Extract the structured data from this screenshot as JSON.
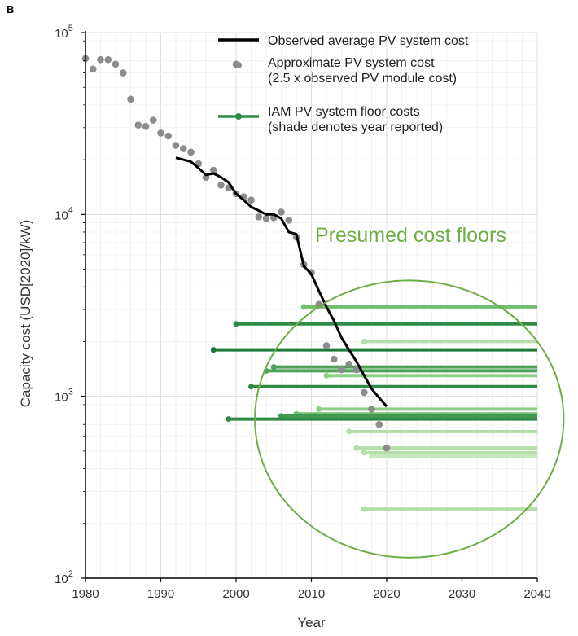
{
  "chart_data": {
    "type": "line",
    "panel_label": "B",
    "xlabel": "Year",
    "ylabel": "Capacity cost (USD[2020]/kW)",
    "xlim": [
      1980,
      2040
    ],
    "ylim": [
      100,
      100000
    ],
    "y_scale": "log",
    "x_ticks": [
      {
        "value": 1980,
        "label": "1980"
      },
      {
        "value": 1990,
        "label": "1990"
      },
      {
        "value": 2000,
        "label": "2000"
      },
      {
        "value": 2010,
        "label": "2010"
      },
      {
        "value": 2020,
        "label": "2020"
      },
      {
        "value": 2030,
        "label": "2030"
      },
      {
        "value": 2040,
        "label": "2040"
      }
    ],
    "y_ticks": [
      {
        "value": 100,
        "base": "10",
        "exp": "2"
      },
      {
        "value": 1000,
        "base": "10",
        "exp": "3"
      },
      {
        "value": 10000,
        "base": "10",
        "exp": "4"
      },
      {
        "value": 100000,
        "base": "10",
        "exp": "5"
      }
    ],
    "grid": true,
    "legend_position": "top-right",
    "series": [
      {
        "name": "Observed average PV system cost",
        "kind": "line",
        "color": "#000000",
        "points": [
          [
            1992,
            20500
          ],
          [
            1993,
            20000
          ],
          [
            1994,
            19500
          ],
          [
            1995,
            18000
          ],
          [
            1996,
            16500
          ],
          [
            1997,
            16800
          ],
          [
            1998,
            16000
          ],
          [
            1999,
            15000
          ],
          [
            2000,
            13000
          ],
          [
            2001,
            12000
          ],
          [
            2002,
            11000
          ],
          [
            2003,
            10500
          ],
          [
            2004,
            10000
          ],
          [
            2005,
            10000
          ],
          [
            2006,
            9500
          ],
          [
            2007,
            8000
          ],
          [
            2008,
            7800
          ],
          [
            2009,
            5200
          ],
          [
            2010,
            4700
          ],
          [
            2011,
            3800
          ],
          [
            2012,
            3100
          ],
          [
            2013,
            2600
          ],
          [
            2014,
            2100
          ],
          [
            2015,
            1800
          ],
          [
            2016,
            1550
          ],
          [
            2017,
            1300
          ],
          [
            2018,
            1100
          ],
          [
            2019,
            980
          ],
          [
            2020,
            880
          ]
        ]
      },
      {
        "name": "Approximate PV system cost\n(2.5 x observed PV module cost)",
        "name_lines": [
          "Approximate PV system cost",
          "(2.5 x observed PV module cost)"
        ],
        "kind": "scatter",
        "color": "#8c8c8c",
        "points": [
          [
            1980,
            72000
          ],
          [
            1981,
            63000
          ],
          [
            1982,
            71000
          ],
          [
            1983,
            71000
          ],
          [
            1984,
            67000
          ],
          [
            1985,
            60000
          ],
          [
            1986,
            43000
          ],
          [
            1987,
            31000
          ],
          [
            1988,
            30500
          ],
          [
            1989,
            33000
          ],
          [
            1990,
            28000
          ],
          [
            1991,
            27000
          ],
          [
            1992,
            24000
          ],
          [
            1993,
            23000
          ],
          [
            1994,
            22000
          ],
          [
            1995,
            19000
          ],
          [
            1996,
            16000
          ],
          [
            1997,
            17500
          ],
          [
            1998,
            14500
          ],
          [
            1999,
            14000
          ],
          [
            2000,
            67000
          ],
          [
            2000,
            13000
          ],
          [
            2001,
            12500
          ],
          [
            2002,
            12000
          ],
          [
            2003,
            9700
          ],
          [
            2004,
            9500
          ],
          [
            2005,
            9600
          ],
          [
            2006,
            10300
          ],
          [
            2007,
            9300
          ],
          [
            2008,
            7500
          ],
          [
            2009,
            5300
          ],
          [
            2010,
            4800
          ],
          [
            2011,
            3200
          ],
          [
            2012,
            1900
          ],
          [
            2013,
            1600
          ],
          [
            2014,
            1400
          ],
          [
            2015,
            1500
          ],
          [
            2016,
            1400
          ],
          [
            2017,
            1050
          ],
          [
            2018,
            850
          ],
          [
            2019,
            700
          ],
          [
            2020,
            520
          ]
        ]
      }
    ],
    "floor_series": {
      "name": "IAM PV system floor costs\n(shade denotes year reported)",
      "name_lines": [
        "IAM PV system floor costs",
        "(shade denotes year reported)"
      ],
      "legend_color": "#2e8b45",
      "x_end": 2040,
      "floors": [
        {
          "start": 2009,
          "value": 3100,
          "color": "#73bd73"
        },
        {
          "start": 2000,
          "value": 2500,
          "color": "#2e8b45"
        },
        {
          "start": 2017,
          "value": 2000,
          "color": "#b4dfa9"
        },
        {
          "start": 1997,
          "value": 1800,
          "color": "#1f7a38"
        },
        {
          "start": 2005,
          "value": 1450,
          "color": "#4fa25a"
        },
        {
          "start": 2004,
          "value": 1380,
          "color": "#4fa25a"
        },
        {
          "start": 2012,
          "value": 1300,
          "color": "#8fcf88"
        },
        {
          "start": 2002,
          "value": 1130,
          "color": "#2e8b45"
        },
        {
          "start": 2011,
          "value": 850,
          "color": "#8fcf88"
        },
        {
          "start": 2008,
          "value": 800,
          "color": "#73bd73"
        },
        {
          "start": 2006,
          "value": 780,
          "color": "#3f9a4e"
        },
        {
          "start": 1999,
          "value": 750,
          "color": "#2e8b45"
        },
        {
          "start": 2015,
          "value": 640,
          "color": "#b4dfa9"
        },
        {
          "start": 2016,
          "value": 520,
          "color": "#b4dfa9"
        },
        {
          "start": 2017,
          "value": 490,
          "color": "#b4dfa9"
        },
        {
          "start": 2018,
          "value": 470,
          "color": "#c6e6bb"
        },
        {
          "start": 2017,
          "value": 240,
          "color": "#b4dfa9"
        }
      ]
    },
    "annotation": {
      "text": "Presumed cost floors",
      "color": "#70ad47",
      "center": {
        "x": 2023,
        "y": 750
      },
      "rx_years": 20.5,
      "half_span_log10": 0.762
    }
  }
}
